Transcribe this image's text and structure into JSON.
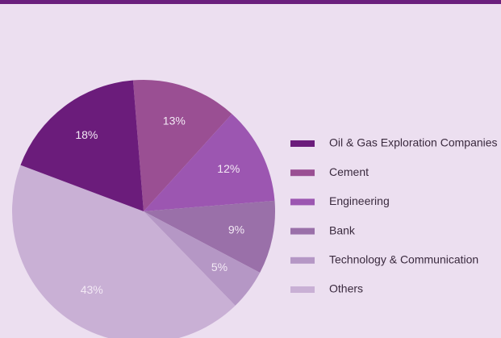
{
  "chart_data": {
    "type": "pie",
    "categories": [
      "Oil & Gas Exploration Companies",
      "Cement",
      "Engineering",
      "Bank",
      "Technology & Communication",
      "Others"
    ],
    "values": [
      18,
      13,
      12,
      9,
      5,
      43
    ],
    "value_labels": [
      "18%",
      "13%",
      "12%",
      "9%",
      "5%",
      "43%"
    ],
    "colors": [
      "#6b1c7b",
      "#9a4f93",
      "#9c56b1",
      "#9a70a9",
      "#b597c5",
      "#c9b0d5"
    ]
  }
}
